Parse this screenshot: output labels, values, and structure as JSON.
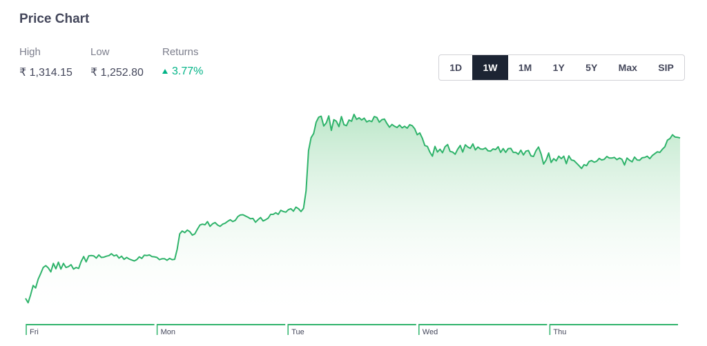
{
  "header": {
    "title": "Price Chart"
  },
  "stats": {
    "high": {
      "label": "High",
      "value": "₹ 1,314.15"
    },
    "low": {
      "label": "Low",
      "value": "₹ 1,252.80"
    },
    "returns": {
      "label": "Returns",
      "value": "3.77%",
      "direction": "up"
    }
  },
  "ranges": {
    "options": [
      "1D",
      "1W",
      "1M",
      "1Y",
      "5Y",
      "Max",
      "SIP"
    ],
    "selected": "1W"
  },
  "colors": {
    "line": "#2eb36a",
    "fill_top": "#a7dfb8",
    "up": "#00b386",
    "active_bg": "#1c2433"
  },
  "chart_data": {
    "type": "area",
    "title": "",
    "xlabel": "",
    "ylabel": "",
    "x_ticks": [
      "Fri",
      "Mon",
      "Tue",
      "Wed",
      "Thu"
    ],
    "grid": false,
    "ylim": [
      1252.8,
      1314.15
    ],
    "series": [
      {
        "name": "",
        "values": [
          1254.8,
          1253.4,
          1255.9,
          1258.9,
          1258.1,
          1260.9,
          1262.7,
          1264.6,
          1265.2,
          1264.5,
          1263.2,
          1265.9,
          1264.2,
          1266.3,
          1264.1,
          1265.9,
          1264.6,
          1264.9,
          1265.5,
          1264.1,
          1264.6,
          1264.3,
          1266.5,
          1268.1,
          1266.4,
          1268.3,
          1268.4,
          1268.3,
          1267.6,
          1268.6,
          1267.8,
          1267.9,
          1268.2,
          1268.4,
          1269.0,
          1268.3,
          1268.6,
          1267.6,
          1268.2,
          1267.2,
          1267.8,
          1267.3,
          1267.0,
          1266.7,
          1267.1,
          1268.0,
          1267.5,
          1268.5,
          1268.4,
          1268.6,
          1268.1,
          1268.0,
          1267.8,
          1267.1,
          1267.4,
          1267.4,
          1266.9,
          1267.5,
          1267.1,
          1267.2,
          1270.4,
          1275.3,
          1276.2,
          1275.7,
          1276.5,
          1276.0,
          1274.9,
          1275.3,
          1276.8,
          1278.1,
          1278.4,
          1278.2,
          1279.2,
          1277.7,
          1278.5,
          1278.9,
          1278.1,
          1277.7,
          1278.4,
          1278.7,
          1279.3,
          1279.8,
          1279.2,
          1279.6,
          1280.8,
          1281.3,
          1281.4,
          1281.0,
          1280.6,
          1280.1,
          1280.2,
          1279.0,
          1279.8,
          1280.5,
          1279.4,
          1279.8,
          1280.3,
          1281.5,
          1281.5,
          1282.0,
          1281.5,
          1282.8,
          1282.4,
          1282.2,
          1283.0,
          1283.3,
          1282.5,
          1283.8,
          1283.3,
          1282.4,
          1283.4,
          1289.0,
          1301.8,
          1305.9,
          1307.2,
          1310.8,
          1312.4,
          1312.7,
          1309.6,
          1310.6,
          1312.8,
          1308.2,
          1311.6,
          1311.1,
          1309.4,
          1312.6,
          1310.0,
          1309.7,
          1311.5,
          1311.1,
          1313.3,
          1311.7,
          1312.2,
          1311.5,
          1312.1,
          1310.9,
          1311.3,
          1311.0,
          1312.6,
          1312.3,
          1310.8,
          1311.6,
          1311.8,
          1310.4,
          1309.2,
          1310.1,
          1309.5,
          1309.1,
          1309.9,
          1309.0,
          1309.5,
          1308.9,
          1310.0,
          1309.7,
          1308.7,
          1306.8,
          1307.4,
          1305.7,
          1303.4,
          1303.1,
          1301.3,
          1300.0,
          1303.1,
          1301.3,
          1302.2,
          1301.1,
          1303.0,
          1303.7,
          1301.5,
          1301.3,
          1300.6,
          1302.2,
          1303.4,
          1301.3,
          1303.6,
          1302.9,
          1302.5,
          1303.9,
          1302.0,
          1302.9,
          1302.3,
          1302.2,
          1302.6,
          1301.7,
          1301.6,
          1302.3,
          1302.1,
          1303.0,
          1301.2,
          1302.4,
          1301.2,
          1302.4,
          1302.5,
          1301.2,
          1301.2,
          1300.6,
          1301.9,
          1300.4,
          1301.6,
          1301.8,
          1300.1,
          1299.9,
          1301.8,
          1302.9,
          1300.7,
          1297.5,
          1298.8,
          1301.0,
          1298.0,
          1299.2,
          1298.5,
          1300.0,
          1299.2,
          1300.0,
          1297.6,
          1300.1,
          1298.8,
          1298.6,
          1297.8,
          1297.0,
          1296.1,
          1297.3,
          1297.0,
          1298.3,
          1298.6,
          1298.1,
          1298.4,
          1299.3,
          1298.8,
          1299.0,
          1299.9,
          1299.4,
          1299.4,
          1299.6,
          1298.9,
          1299.4,
          1299.0,
          1297.2,
          1299.4,
          1298.7,
          1298.2,
          1299.7,
          1298.8,
          1298.7,
          1299.5,
          1299.6,
          1300.0,
          1299.2,
          1300.2,
          1300.8,
          1301.4,
          1301.2,
          1302.2,
          1303.0,
          1305.1,
          1305.6,
          1306.8,
          1306.1,
          1306.0,
          1305.8
        ]
      }
    ]
  }
}
